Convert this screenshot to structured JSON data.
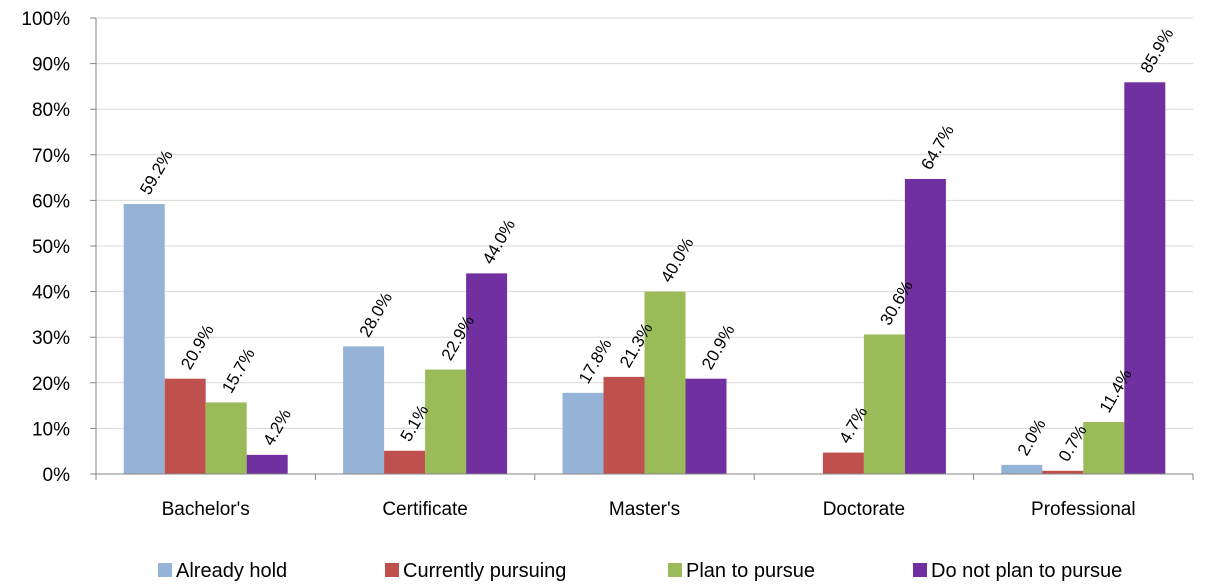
{
  "chart_data": {
    "type": "bar",
    "categories": [
      "Bachelor's",
      "Certificate",
      "Master's",
      "Doctorate",
      "Professional"
    ],
    "series": [
      {
        "name": "Already hold",
        "color": "#95B3D7",
        "values": [
          59.2,
          28.0,
          17.8,
          null,
          2.0
        ],
        "labels": [
          "59.2%",
          "28.0%",
          "17.8%",
          "",
          "2.0%"
        ]
      },
      {
        "name": "Currently pursuing",
        "color": "#C0504D",
        "values": [
          20.9,
          5.1,
          21.3,
          4.7,
          0.7
        ],
        "labels": [
          "20.9%",
          "5.1%",
          "21.3%",
          "4.7%",
          "0.7%"
        ]
      },
      {
        "name": "Plan to pursue",
        "color": "#9BBB59",
        "values": [
          15.7,
          22.9,
          40.0,
          30.6,
          11.4
        ],
        "labels": [
          "15.7%",
          "22.9%",
          "40.0%",
          "30.6%",
          "11.4%"
        ]
      },
      {
        "name": "Do not plan to pursue",
        "color": "#7030A0",
        "values": [
          4.2,
          44.0,
          20.9,
          64.7,
          85.9
        ],
        "labels": [
          "4.2%",
          "44.0%",
          "20.9%",
          "64.7%",
          "85.9%"
        ]
      }
    ],
    "ylim": [
      0,
      100
    ],
    "yticks": [
      0,
      10,
      20,
      30,
      40,
      50,
      60,
      70,
      80,
      90,
      100
    ],
    "ytick_labels": [
      "0%",
      "10%",
      "20%",
      "30%",
      "40%",
      "50%",
      "60%",
      "70%",
      "80%",
      "90%",
      "100%"
    ],
    "grid": true,
    "legend_position": "bottom"
  }
}
